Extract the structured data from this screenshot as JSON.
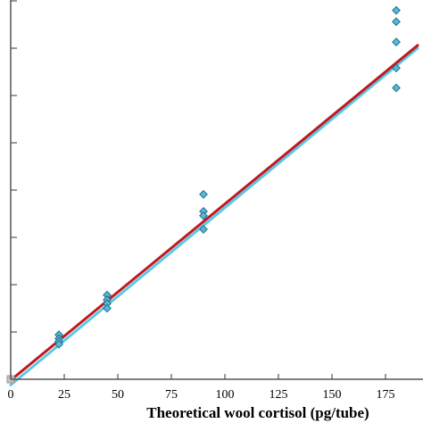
{
  "chart_data": {
    "type": "scatter",
    "title": "",
    "xlabel": "Theoretical wool cortisol (pg/tube)",
    "ylabel": "",
    "xlim": [
      0,
      190
    ],
    "ylim": [
      0,
      78
    ],
    "x_ticks": [
      0,
      25,
      50,
      75,
      100,
      125,
      150,
      175
    ],
    "x_tick_labels": [
      "0",
      "25",
      "50",
      "75",
      "100",
      "125",
      "150",
      "175"
    ],
    "y_ticks": [
      10,
      20,
      30,
      40,
      50,
      60,
      70,
      80
    ],
    "grid": false,
    "legend": "none",
    "series": [
      {
        "marker": "diamond",
        "color": "#5bb8d4",
        "edge_color": "#1f6f8b",
        "points": [
          {
            "x": 0,
            "y": 0
          },
          {
            "x": 22.5,
            "y": 9.4
          },
          {
            "x": 22.5,
            "y": 8.6
          },
          {
            "x": 22.5,
            "y": 8.0
          },
          {
            "x": 22.5,
            "y": 7.4
          },
          {
            "x": 45,
            "y": 17.8
          },
          {
            "x": 45,
            "y": 16.8
          },
          {
            "x": 45,
            "y": 16.0
          },
          {
            "x": 45,
            "y": 15.0
          },
          {
            "x": 90,
            "y": 39.1
          },
          {
            "x": 90,
            "y": 35.5
          },
          {
            "x": 90,
            "y": 34.6
          },
          {
            "x": 90,
            "y": 31.7
          },
          {
            "x": 180,
            "y": 78.0
          },
          {
            "x": 180,
            "y": 75.6
          },
          {
            "x": 180,
            "y": 71.3
          },
          {
            "x": 180,
            "y": 65.8
          },
          {
            "x": 180,
            "y": 61.6
          }
        ]
      }
    ],
    "lines": [
      {
        "kind": "fit",
        "color": "#5bc8e6",
        "x": [
          0,
          190
        ],
        "y": [
          -1.2,
          70.0
        ]
      },
      {
        "kind": "fit",
        "color": "#c0191f",
        "x": [
          0,
          190
        ],
        "y": [
          -0.2,
          70.6
        ]
      }
    ]
  }
}
